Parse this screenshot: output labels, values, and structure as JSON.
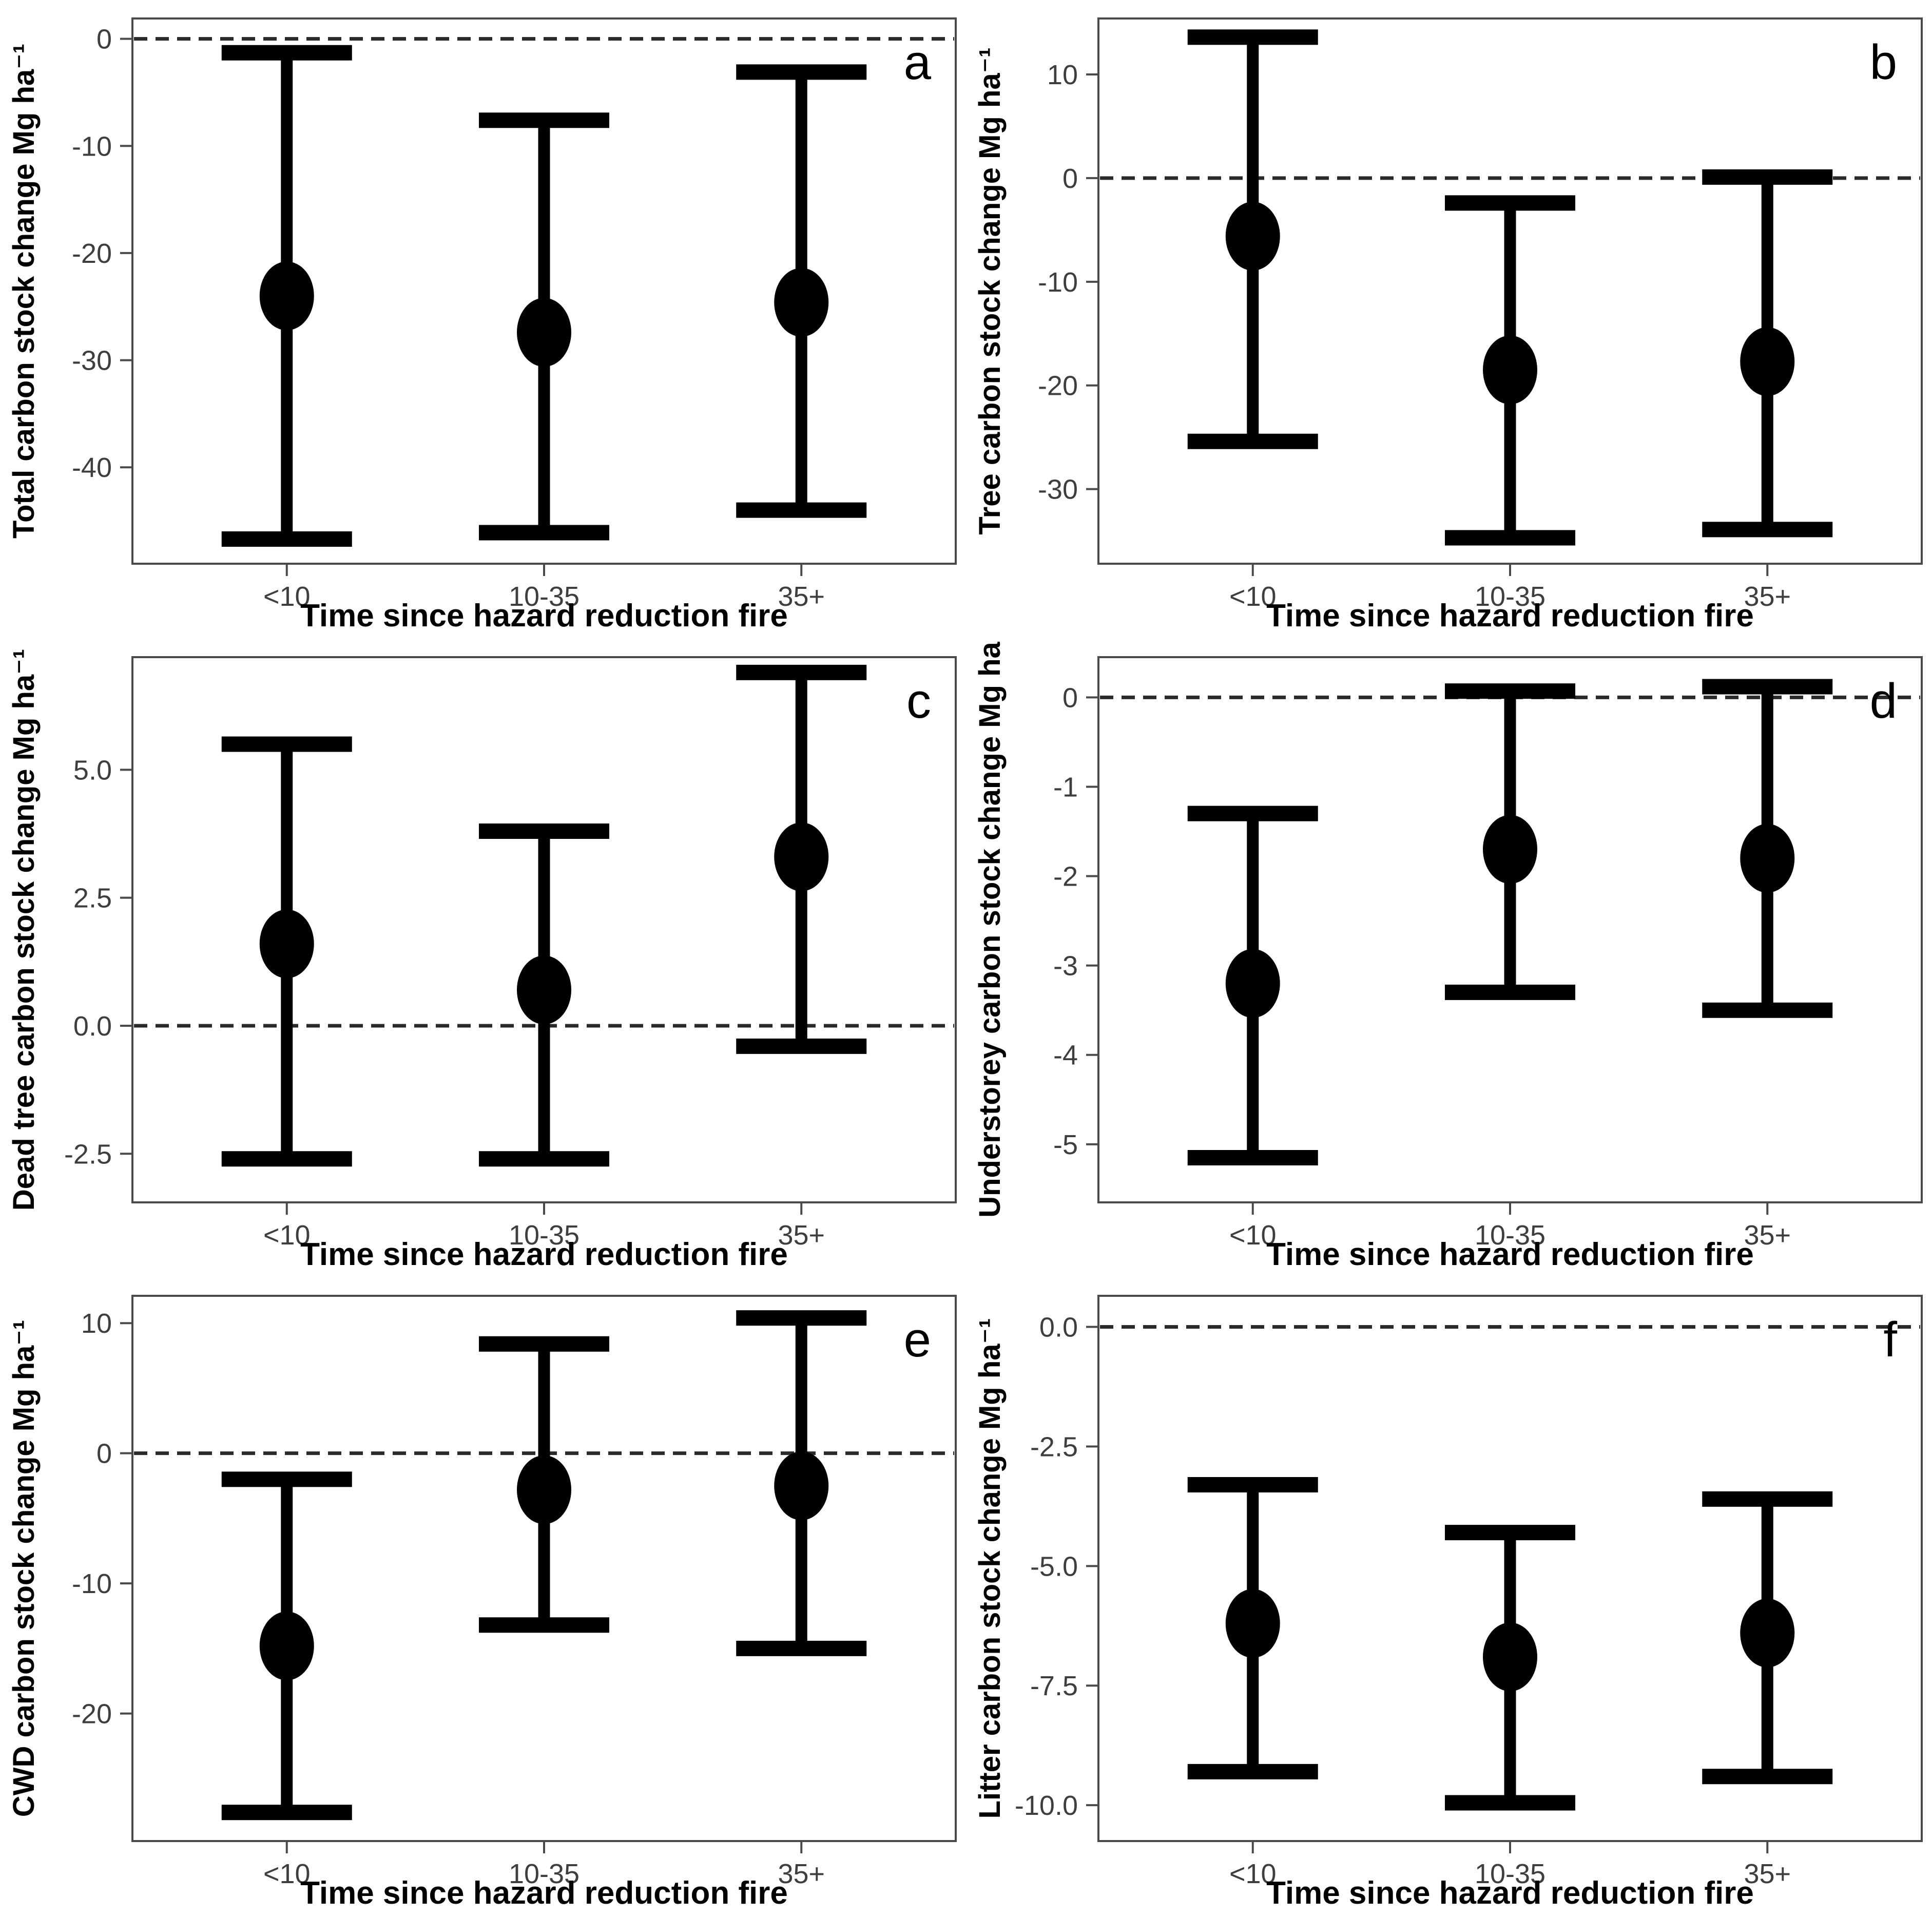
{
  "figure": {
    "x_axis_title": "Time since hazard reduction fire",
    "x_categories": [
      "<10",
      "10-35",
      "35+"
    ],
    "panel_letters": [
      "a",
      "b",
      "c",
      "d",
      "e",
      "f"
    ],
    "colors": {
      "marker": "#000000",
      "error_bar": "#000000",
      "reference_line": "#2a2a2a",
      "axis_frame": "#4a4a4a",
      "tick_text": "#3e3e3e",
      "title_text": "#000000",
      "background": "#ffffff"
    }
  },
  "chart_data": [
    {
      "type": "scatter",
      "panel_label": "a",
      "ylabel": "Total carbon stock change Mg ha⁻¹",
      "xlabel": "Time since hazard reduction fire",
      "categories": [
        "<10",
        "10-35",
        "35+"
      ],
      "points": [
        -24.0,
        -27.4,
        -24.6
      ],
      "ci_upper": [
        -1.3,
        -7.6,
        -3.1
      ],
      "ci_lower": [
        -46.7,
        -46.1,
        -44.0
      ],
      "ytick_labels": [
        "0",
        "-10",
        "-20",
        "-30",
        "-40"
      ],
      "ylim": [
        -49.0,
        1.9
      ],
      "zero_reference_line": 0,
      "grid": false,
      "legend": null
    },
    {
      "type": "scatter",
      "panel_label": "b",
      "ylabel": "Tree carbon stock change Mg ha⁻¹",
      "xlabel": "Time since hazard reduction fire",
      "categories": [
        "<10",
        "10-35",
        "35+"
      ],
      "points": [
        -5.6,
        -18.5,
        -17.7
      ],
      "ci_upper": [
        13.6,
        -2.4,
        0.1
      ],
      "ci_lower": [
        -25.4,
        -34.7,
        -33.9
      ],
      "ytick_labels": [
        "10",
        "0",
        "-10",
        "-20",
        "-30"
      ],
      "ylim": [
        -37.2,
        15.4
      ],
      "zero_reference_line": 0,
      "grid": false,
      "legend": null
    },
    {
      "type": "scatter",
      "panel_label": "c",
      "ylabel": "Dead tree carbon stock change Mg ha⁻¹",
      "xlabel": "Time since hazard reduction fire",
      "categories": [
        "<10",
        "10-35",
        "35+"
      ],
      "points": [
        1.6,
        0.7,
        3.3
      ],
      "ci_upper": [
        5.5,
        3.8,
        6.9
      ],
      "ci_lower": [
        -2.6,
        -2.6,
        -0.4
      ],
      "ytick_labels": [
        "5.0",
        "2.5",
        "0.0",
        "-2.5"
      ],
      "ylim": [
        -3.45,
        7.2
      ],
      "zero_reference_line": 0,
      "grid": false,
      "legend": null
    },
    {
      "type": "scatter",
      "panel_label": "d",
      "ylabel": "Understorey carbon stock change Mg ha",
      "xlabel": "Time since hazard reduction fire",
      "categories": [
        "<10",
        "10-35",
        "35+"
      ],
      "points": [
        -3.2,
        -1.7,
        -1.8
      ],
      "ci_upper": [
        -1.3,
        0.07,
        0.12
      ],
      "ci_lower": [
        -5.15,
        -3.3,
        -3.5
      ],
      "ytick_labels": [
        "0",
        "-1",
        "-2",
        "-3",
        "-4",
        "-5"
      ],
      "ylim": [
        -5.65,
        0.45
      ],
      "zero_reference_line": 0,
      "grid": false,
      "legend": null
    },
    {
      "type": "scatter",
      "panel_label": "e",
      "ylabel": "CWD carbon stock change Mg ha⁻¹",
      "xlabel": "Time since hazard reduction fire",
      "categories": [
        "<10",
        "10-35",
        "35+"
      ],
      "points": [
        -14.8,
        -2.8,
        -2.5
      ],
      "ci_upper": [
        -2.0,
        8.4,
        10.4
      ],
      "ci_lower": [
        -27.6,
        -13.2,
        -15.0
      ],
      "ytick_labels": [
        "10",
        "0",
        "-10",
        "-20"
      ],
      "ylim": [
        -29.8,
        12.1
      ],
      "zero_reference_line": 0,
      "grid": false,
      "legend": null
    },
    {
      "type": "scatter",
      "panel_label": "f",
      "ylabel": "Litter carbon stock change Mg ha⁻¹",
      "xlabel": "Time since hazard reduction fire",
      "categories": [
        "<10",
        "10-35",
        "35+"
      ],
      "points": [
        -6.2,
        -6.9,
        -6.4
      ],
      "ci_upper": [
        -3.3,
        -4.3,
        -3.6
      ],
      "ci_lower": [
        -9.3,
        -9.95,
        -9.4
      ],
      "ytick_labels": [
        "0.0",
        "-2.5",
        "-5.0",
        "-7.5",
        "-10.0"
      ],
      "ylim": [
        -10.75,
        0.65
      ],
      "zero_reference_line": 0,
      "grid": false,
      "legend": null
    }
  ]
}
